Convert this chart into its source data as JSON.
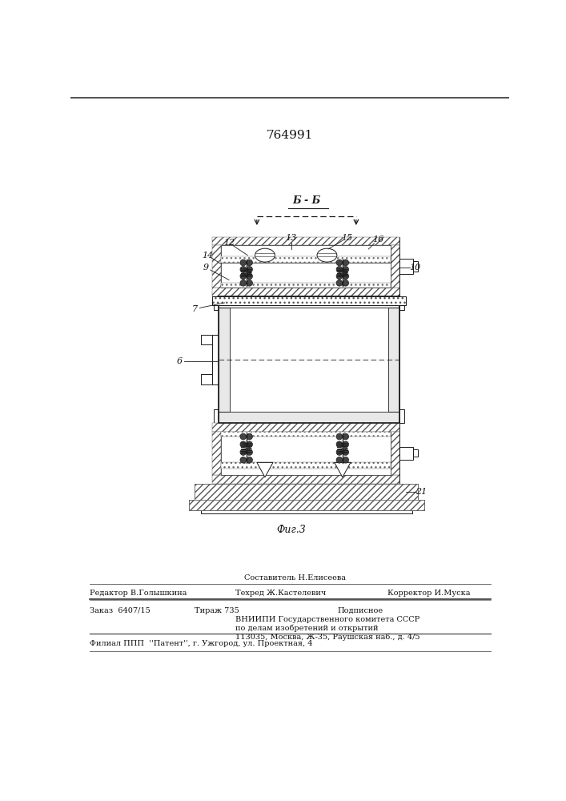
{
  "patent_number": "764991",
  "fig_label": "Фиг.3",
  "section_label": "Б - Б",
  "footer": {
    "comp": "Составитель Н.Елисеева",
    "editor": "Редактор В.Голышкина",
    "tech": "Техред Ж.Кастелевич",
    "corrector": "Корректор И.Муска",
    "order": "Заказ  6407/15",
    "tiraj": "Тираж 735",
    "podp": "Подписное",
    "vniip1": "ВНИИПИ Государственного комитета СССР",
    "vniip2": "по делам изобретений и открытий",
    "vniip3": "113035, Москва, Ж-35, Раушская наб., д. 4/5",
    "filial": "Филиал ППП  ''Патент'', г. Ужгород, ул. Проектная, 4"
  }
}
